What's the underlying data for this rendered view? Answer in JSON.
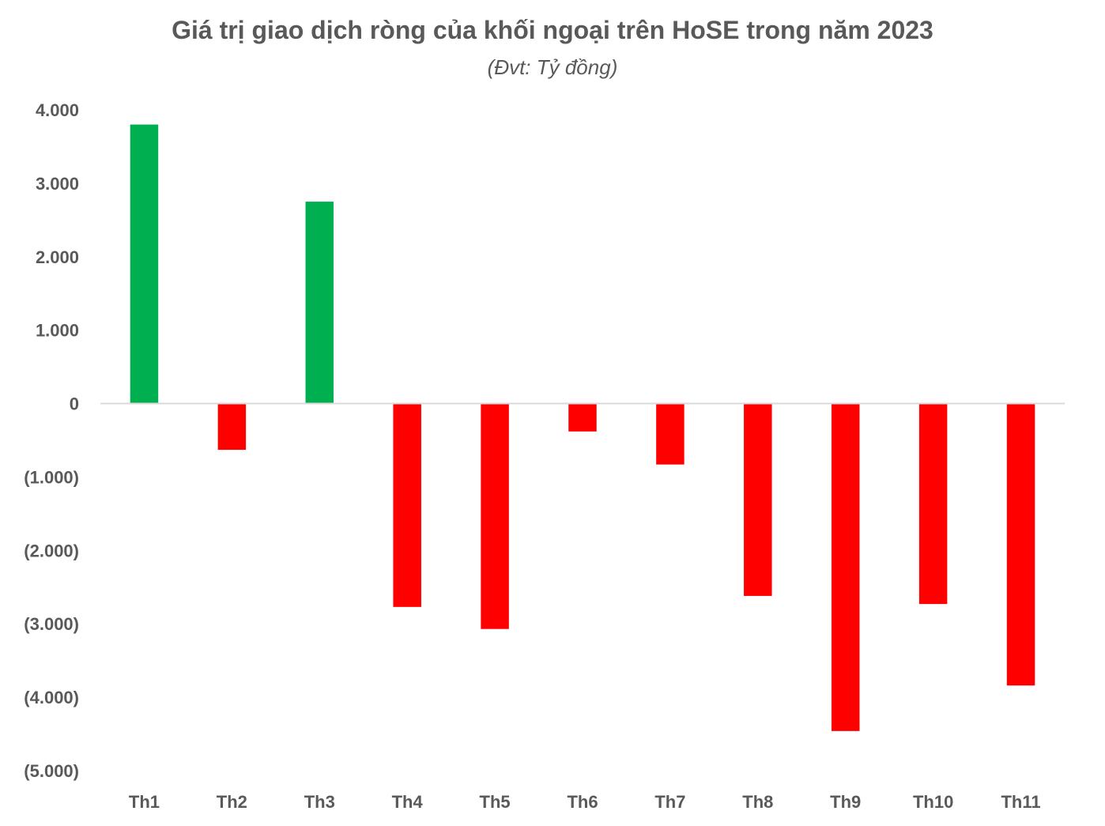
{
  "chart_data": {
    "type": "bar",
    "title": "Giá trị giao dịch ròng của khối ngoại trên HoSE trong năm 2023",
    "subtitle": "(Đvt: Tỷ đồng)",
    "xlabel": "",
    "ylabel": "",
    "categories": [
      "Th1",
      "Th2",
      "Th3",
      "Th4",
      "Th5",
      "Th6",
      "Th7",
      "Th8",
      "Th9",
      "Th10",
      "Th11"
    ],
    "values": [
      3800,
      -630,
      2750,
      -2770,
      -3070,
      -380,
      -830,
      -2620,
      -4460,
      -2730,
      -3840
    ],
    "ylim": [
      -5000,
      4000
    ],
    "yticks": [
      4000,
      3000,
      2000,
      1000,
      0,
      -1000,
      -2000,
      -3000,
      -4000,
      -5000
    ],
    "ytick_labels": [
      "4.000",
      "3.000",
      "2.000",
      "1.000",
      "0",
      "(1.000)",
      "(2.000)",
      "(3.000)",
      "(4.000)",
      "(5.000)"
    ],
    "grid": false,
    "legend": "none",
    "colors": {
      "positive": "#00B050",
      "negative": "#FF0000",
      "axis": "#D9D9D9",
      "text": "#595959"
    }
  }
}
